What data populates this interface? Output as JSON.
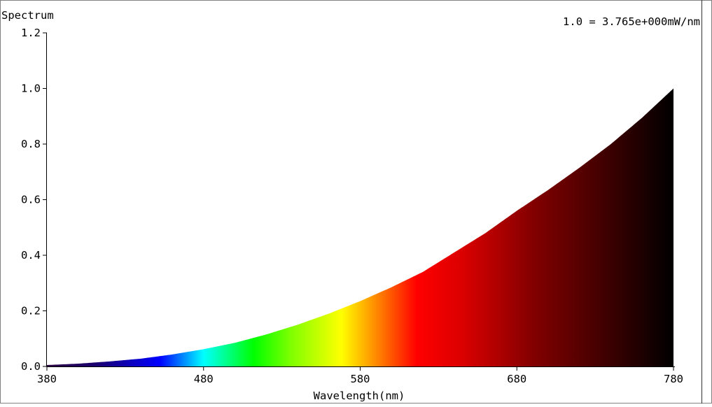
{
  "chart_data": {
    "type": "area",
    "title": "Spectrum",
    "scale_note": "1.0 = 3.765e+000mW/nm",
    "xlabel": "Wavelength(nm)",
    "ylabel": "",
    "xlim": [
      380,
      780
    ],
    "ylim": [
      0,
      1.2
    ],
    "x_ticks": [
      "380",
      "480",
      "580",
      "680",
      "780"
    ],
    "y_ticks": [
      "0.0",
      "0.2",
      "0.4",
      "0.6",
      "0.8",
      "1.0",
      "1.2"
    ],
    "grid": false,
    "legend": "none",
    "fill": "wavelength-spectrum-gradient",
    "series": [
      {
        "x": [
          380,
          400,
          420,
          440,
          460,
          480,
          500,
          520,
          540,
          560,
          580,
          600,
          620,
          640,
          660,
          680,
          700,
          720,
          740,
          760,
          780
        ],
        "values": [
          0.005,
          0.01,
          0.018,
          0.028,
          0.043,
          0.062,
          0.085,
          0.115,
          0.15,
          0.19,
          0.235,
          0.285,
          0.34,
          0.41,
          0.48,
          0.56,
          0.635,
          0.715,
          0.8,
          0.895,
          1.0
        ]
      }
    ]
  }
}
